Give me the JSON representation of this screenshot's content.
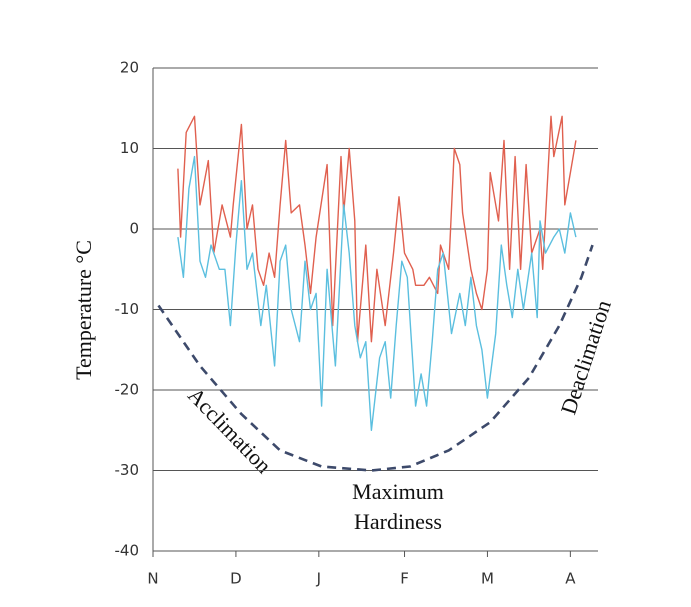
{
  "chart_data": {
    "type": "line",
    "y_label": "Temperature °C",
    "annotations": [
      "Acclimation",
      "Maximum",
      "Hardiness",
      "Deaclimation"
    ],
    "xlim": [
      0,
      161
    ],
    "xticks": [
      {
        "value": 0,
        "label": "N"
      },
      {
        "value": 30,
        "label": "D"
      },
      {
        "value": 60,
        "label": "J"
      },
      {
        "value": 91,
        "label": "F"
      },
      {
        "value": 121,
        "label": "M"
      },
      {
        "value": 151,
        "label": "A"
      }
    ],
    "ylim": [
      -40,
      20
    ],
    "yticks": [
      -40,
      -30,
      -20,
      -10,
      0,
      10,
      20
    ],
    "grid": true,
    "series": [
      {
        "color": "#e0604f",
        "dashed": false,
        "x": [
          9,
          10,
          12,
          15,
          17,
          20,
          22,
          25,
          28,
          29,
          32,
          34,
          36,
          38,
          40,
          42,
          44,
          46,
          48,
          50,
          53,
          55,
          57,
          59,
          63,
          65,
          68,
          69,
          71,
          73,
          74,
          77,
          79,
          81,
          84,
          87,
          89,
          91,
          94,
          95,
          98,
          100,
          103,
          104,
          107,
          109,
          111,
          112,
          115,
          117,
          119,
          121,
          122,
          125,
          127,
          129,
          131,
          133,
          135,
          137,
          140,
          141,
          144,
          145,
          148,
          149,
          151,
          153
        ],
        "values": [
          7.5,
          -1,
          12,
          14,
          3,
          8.5,
          -3,
          3,
          -1,
          3,
          13,
          0,
          3,
          -5,
          -7,
          -3,
          -6,
          3,
          11,
          2,
          3,
          -2,
          -8,
          -1,
          8,
          -12,
          9,
          2,
          10,
          1,
          -14,
          -2,
          -14,
          -5,
          -12,
          -3,
          4,
          -3,
          -5,
          -7,
          -7,
          -6,
          -8,
          -2,
          -5,
          10,
          8,
          2,
          -5,
          -8,
          -10,
          -5,
          7,
          1,
          11,
          -5,
          9,
          -5,
          8,
          -3,
          0,
          -5,
          14,
          9,
          14,
          3,
          7,
          11
        ]
      },
      {
        "color": "#5bbfdf",
        "dashed": false,
        "x": [
          9,
          11,
          13,
          15,
          17,
          19,
          21,
          24,
          26,
          28,
          30,
          32,
          34,
          36,
          39,
          41,
          44,
          46,
          48,
          50,
          53,
          55,
          57,
          59,
          61,
          63,
          66,
          69,
          71,
          73,
          75,
          77,
          79,
          82,
          84,
          86,
          88,
          90,
          92,
          95,
          97,
          99,
          101,
          103,
          105,
          108,
          111,
          113,
          115,
          117,
          119,
          121,
          124,
          126,
          128,
          130,
          132,
          134,
          137,
          139,
          140,
          142,
          145,
          147,
          149,
          151,
          153
        ],
        "values": [
          -1,
          -6,
          5,
          9,
          -4,
          -6,
          -2,
          -5,
          -5,
          -12,
          -2,
          6,
          -5,
          -3,
          -12,
          -7,
          -17,
          -4,
          -2,
          -10,
          -14,
          -4,
          -10,
          -8,
          -22,
          -5,
          -17,
          3,
          -3,
          -12,
          -16,
          -14,
          -25,
          -16,
          -14,
          -21,
          -12,
          -4,
          -6,
          -22,
          -18,
          -22,
          -14,
          -5,
          -3,
          -13,
          -8,
          -12,
          -6,
          -12,
          -15,
          -21,
          -13,
          -2,
          -7,
          -11,
          -5,
          -10,
          -3,
          -11,
          1,
          -3,
          -1,
          0,
          -3,
          2,
          -1
        ]
      },
      {
        "color": "#3d4a6b",
        "dashed": true,
        "x": [
          2,
          17,
          32,
          46,
          61,
          79,
          93,
          107,
          122,
          136,
          147,
          155,
          159
        ],
        "values": [
          -9.5,
          -17,
          -23,
          -27.5,
          -29.5,
          -30,
          -29.5,
          -27.5,
          -24,
          -18.5,
          -12,
          -6,
          -2
        ]
      }
    ]
  }
}
